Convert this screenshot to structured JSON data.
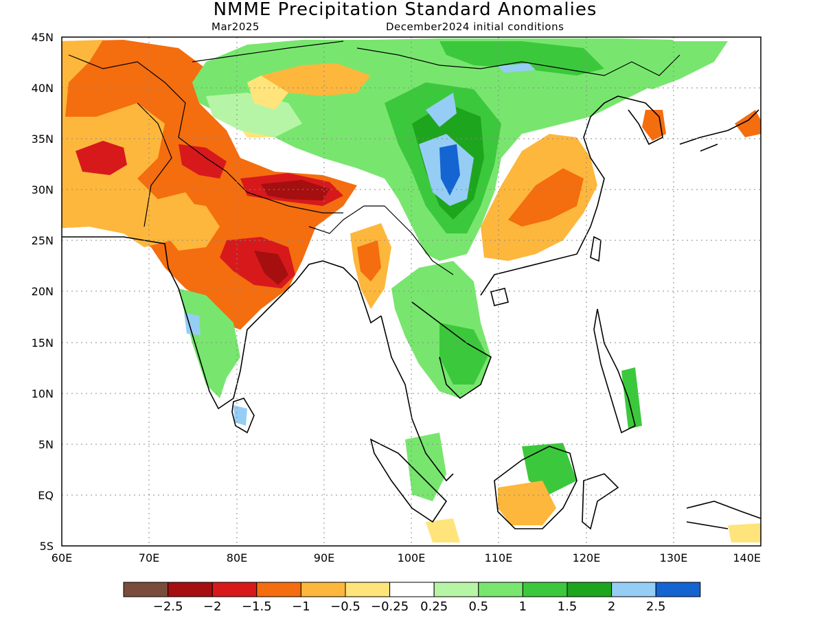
{
  "title": "NMME Precipitation Standard Anomalies",
  "subtitle_left": "Mar2025",
  "subtitle_right": "December2024 initial conditions",
  "map": {
    "lon_range": [
      60,
      140
    ],
    "lat_range": [
      -5,
      45
    ],
    "lon_ticks": [
      "60E",
      "70E",
      "80E",
      "90E",
      "100E",
      "110E",
      "120E",
      "130E",
      "140E"
    ],
    "lat_ticks": [
      "45N",
      "40N",
      "35N",
      "30N",
      "25N",
      "20N",
      "15N",
      "10N",
      "5N",
      "EQ",
      "5S"
    ],
    "gridlines": "dotted"
  },
  "colorbar": {
    "colors": [
      "#7a4c3c",
      "#a50f0f",
      "#d7191c",
      "#f46d0f",
      "#fdb73c",
      "#fee47a",
      "#ffffff",
      "#b6f5a6",
      "#78e66e",
      "#3cc83c",
      "#1ea51e",
      "#96cdf5",
      "#1464d2"
    ],
    "labels": [
      "−2.5",
      "−2",
      "−1.5",
      "−1",
      "−0.5",
      "−0.25",
      "0.25",
      "0.5",
      "1",
      "1.5",
      "2",
      "2.5"
    ]
  }
}
